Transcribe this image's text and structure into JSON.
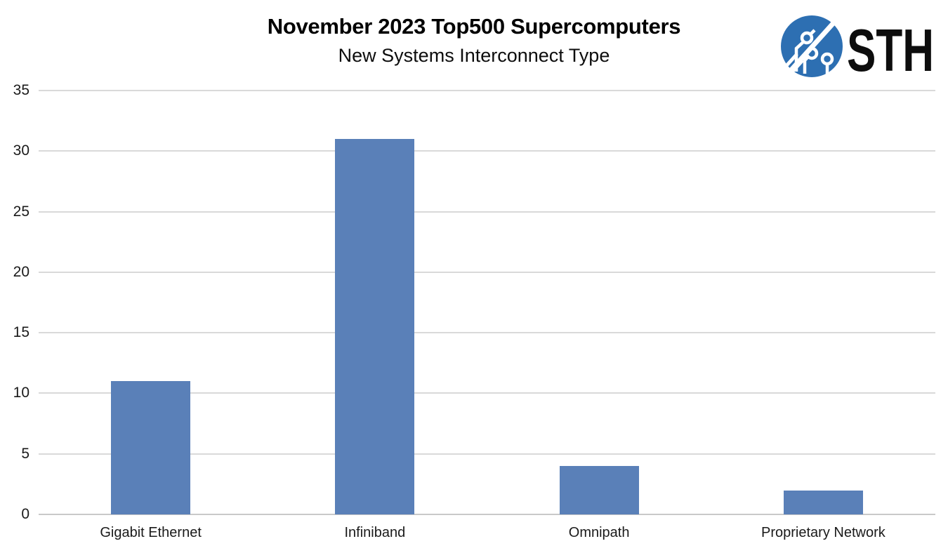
{
  "header": {
    "title": "November 2023 Top500 Supercomputers",
    "subtitle": "New Systems Interconnect Type"
  },
  "logo": {
    "text": "STH",
    "circle_color": "#2d6fb2",
    "text_color": "#0d0d0d"
  },
  "chart_data": {
    "type": "bar",
    "title": "November 2023 Top500 Supercomputers",
    "subtitle": "New Systems Interconnect Type",
    "categories": [
      "Gigabit Ethernet",
      "Infiniband",
      "Omnipath",
      "Proprietary Network"
    ],
    "values": [
      11,
      31,
      4,
      2
    ],
    "xlabel": "",
    "ylabel": "",
    "ylim": [
      0,
      35
    ],
    "yticks": [
      0,
      5,
      10,
      15,
      20,
      25,
      30,
      35
    ],
    "grid": true,
    "legend": "none",
    "bar_color": "#5a80b8",
    "gridline_color": "#d9d9d9",
    "axis_line_color": "#c9c9c9",
    "tick_label_color": "#1a1a1a"
  }
}
